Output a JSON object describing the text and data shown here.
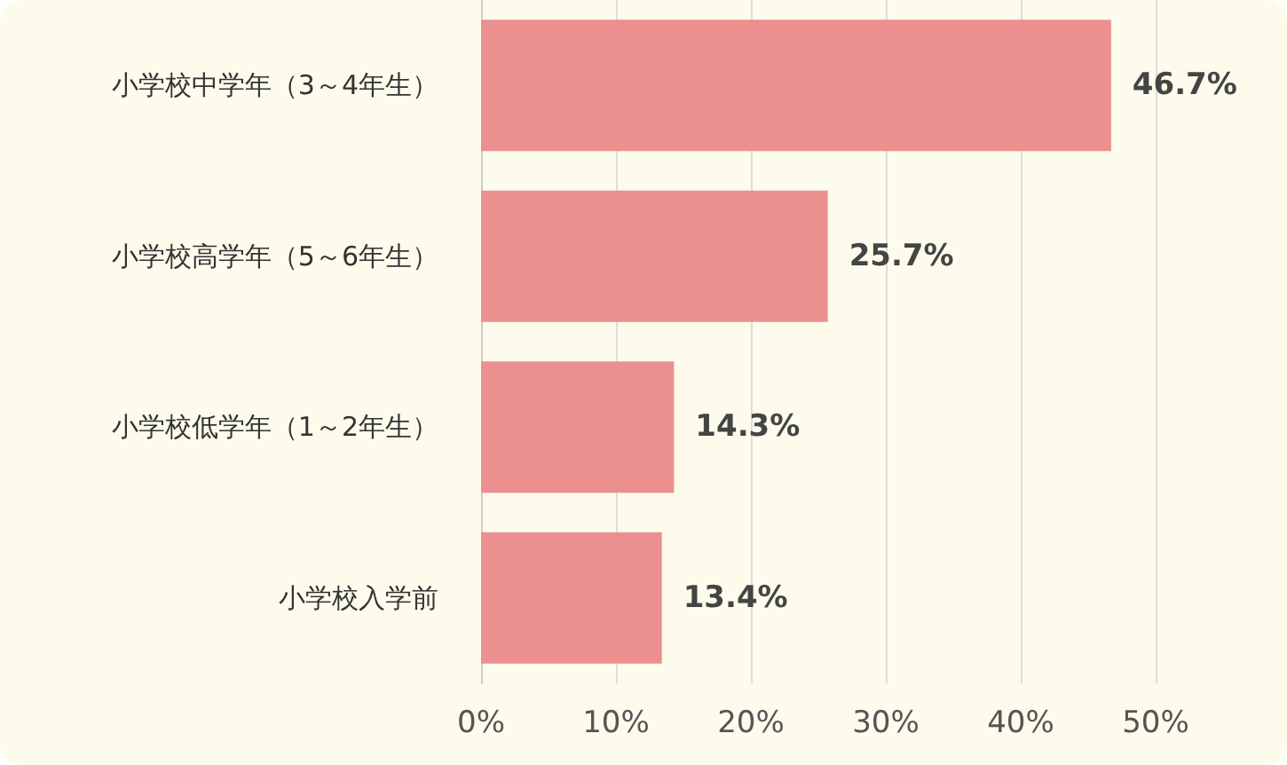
{
  "chart_data": {
    "type": "bar",
    "orientation": "horizontal",
    "categories": [
      "小学校中学年（3～4年生）",
      "小学校高学年（5～6年生）",
      "小学校低学年（1～2年生）",
      "小学校入学前"
    ],
    "series": [
      {
        "color": "#ec8f8f",
        "values": [
          46.7,
          25.7,
          14.3,
          13.4
        ],
        "value_labels": [
          "46.7%",
          "25.7%",
          "14.3%",
          "13.4%"
        ]
      }
    ],
    "xlim": [
      0,
      50
    ],
    "xticks": [
      {
        "value": 0,
        "label": "0%"
      },
      {
        "value": 10,
        "label": "10%"
      },
      {
        "value": 20,
        "label": "20%"
      },
      {
        "value": 30,
        "label": "30%"
      },
      {
        "value": 40,
        "label": "40%"
      },
      {
        "value": 50,
        "label": "50%"
      }
    ],
    "grid": "x"
  }
}
